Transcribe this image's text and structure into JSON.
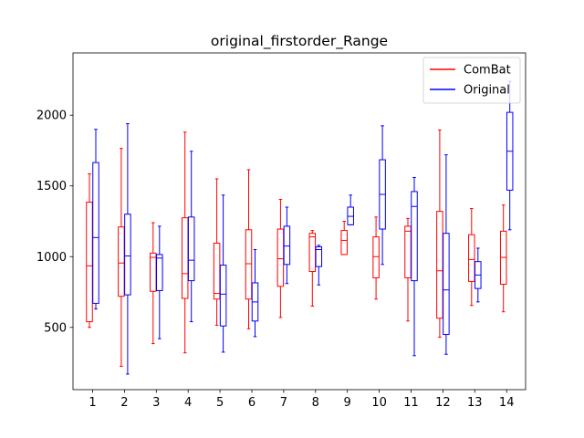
{
  "chart_data": {
    "type": "box",
    "title": "original_firstorder_Range",
    "xlabel": "",
    "ylabel": "",
    "categories": [
      "1",
      "2",
      "3",
      "4",
      "5",
      "6",
      "7",
      "8",
      "9",
      "10",
      "11",
      "12",
      "13",
      "14"
    ],
    "ylim": [
      60,
      2440
    ],
    "yticks": [
      500,
      1000,
      1500,
      2000
    ],
    "grid": false,
    "legend_position": "top-right",
    "series": [
      {
        "name": "ComBat",
        "color": "#ff0000",
        "boxes": [
          {
            "whislo": 500,
            "q1": 540,
            "med": 935,
            "q3": 1385,
            "whishi": 1585
          },
          {
            "whislo": 225,
            "q1": 720,
            "med": 955,
            "q3": 1210,
            "whishi": 1765
          },
          {
            "whislo": 385,
            "q1": 755,
            "med": 995,
            "q3": 1025,
            "whishi": 1240
          },
          {
            "whislo": 320,
            "q1": 705,
            "med": 880,
            "q3": 1275,
            "whishi": 1880
          },
          {
            "whislo": 515,
            "q1": 700,
            "med": 740,
            "q3": 1095,
            "whishi": 1550
          },
          {
            "whislo": 490,
            "q1": 700,
            "med": 950,
            "q3": 1190,
            "whishi": 1615
          },
          {
            "whislo": 570,
            "q1": 790,
            "med": 985,
            "q3": 1195,
            "whishi": 1405
          },
          {
            "whislo": 650,
            "q1": 895,
            "med": 1140,
            "q3": 1165,
            "whishi": 1185
          },
          {
            "whislo": 1015,
            "q1": 1015,
            "med": 1115,
            "q3": 1185,
            "whishi": 1250
          },
          {
            "whislo": 700,
            "q1": 850,
            "med": 1000,
            "q3": 1140,
            "whishi": 1280
          },
          {
            "whislo": 545,
            "q1": 850,
            "med": 1180,
            "q3": 1215,
            "whishi": 1270
          },
          {
            "whislo": 430,
            "q1": 565,
            "med": 900,
            "q3": 1320,
            "whishi": 1895
          },
          {
            "whislo": 655,
            "q1": 825,
            "med": 980,
            "q3": 1155,
            "whishi": 1340
          },
          {
            "whislo": 610,
            "q1": 805,
            "med": 995,
            "q3": 1180,
            "whishi": 1365
          }
        ]
      },
      {
        "name": "Original",
        "color": "#0000ff",
        "boxes": [
          {
            "whislo": 630,
            "q1": 670,
            "med": 1135,
            "q3": 1665,
            "whishi": 1900
          },
          {
            "whislo": 170,
            "q1": 730,
            "med": 1005,
            "q3": 1300,
            "whishi": 1940
          },
          {
            "whislo": 420,
            "q1": 760,
            "med": 990,
            "q3": 1015,
            "whishi": 1215
          },
          {
            "whislo": 540,
            "q1": 830,
            "med": 975,
            "q3": 1280,
            "whishi": 1745
          },
          {
            "whislo": 325,
            "q1": 510,
            "med": 735,
            "q3": 940,
            "whishi": 1435
          },
          {
            "whislo": 435,
            "q1": 545,
            "med": 680,
            "q3": 815,
            "whishi": 1050
          },
          {
            "whislo": 810,
            "q1": 945,
            "med": 1075,
            "q3": 1215,
            "whishi": 1350
          },
          {
            "whislo": 800,
            "q1": 930,
            "med": 1050,
            "q3": 1070,
            "whishi": 1080
          },
          {
            "whislo": 1225,
            "q1": 1225,
            "med": 1285,
            "q3": 1350,
            "whishi": 1435
          },
          {
            "whislo": 945,
            "q1": 1195,
            "med": 1440,
            "q3": 1685,
            "whishi": 1925
          },
          {
            "whislo": 300,
            "q1": 830,
            "med": 1355,
            "q3": 1460,
            "whishi": 1560
          },
          {
            "whislo": 310,
            "q1": 450,
            "med": 765,
            "q3": 1165,
            "whishi": 1720
          },
          {
            "whislo": 680,
            "q1": 775,
            "med": 870,
            "q3": 965,
            "whishi": 1060
          },
          {
            "whislo": 1190,
            "q1": 1470,
            "med": 1745,
            "q3": 2020,
            "whishi": 2240
          }
        ]
      }
    ]
  }
}
